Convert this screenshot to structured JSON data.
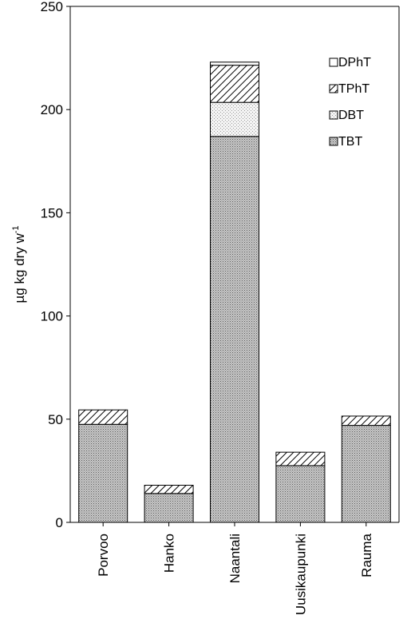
{
  "chart_data": {
    "type": "bar",
    "stacked": true,
    "title": "",
    "xlabel": "",
    "ylabel": "µg kg dry w",
    "ylabel_superscript": "-1",
    "ylim": [
      0,
      250
    ],
    "yticks": [
      "0",
      "50",
      "100",
      "150",
      "200",
      "250"
    ],
    "categories": [
      "Porvoo",
      "Hanko",
      "Naantali",
      "Uusikaupunki",
      "Rauma"
    ],
    "series": [
      {
        "name": "TBT",
        "pattern": "dots",
        "values": [
          47.5,
          14,
          187,
          27.5,
          47
        ]
      },
      {
        "name": "DBT",
        "pattern": "fine",
        "values": [
          0,
          0,
          16.5,
          0,
          0
        ]
      },
      {
        "name": "TPhT",
        "pattern": "hatch",
        "values": [
          7,
          4,
          18,
          6.5,
          4.5
        ]
      },
      {
        "name": "DPhT",
        "pattern": "blank",
        "values": [
          0,
          0,
          1.5,
          0,
          0
        ]
      }
    ],
    "legend": {
      "position": "top-right",
      "order": [
        "DPhT",
        "TPhT",
        "DBT",
        "TBT"
      ]
    },
    "grid": false
  }
}
